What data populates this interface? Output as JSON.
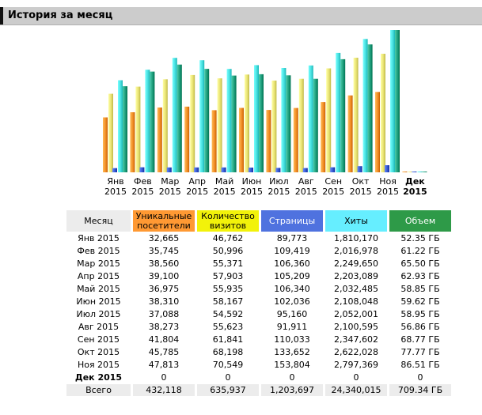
{
  "section": {
    "title": "История за месяц"
  },
  "chart_data": {
    "type": "bar",
    "categories": [
      [
        "Янв",
        "2015"
      ],
      [
        "Фев",
        "2015"
      ],
      [
        "Мар",
        "2015"
      ],
      [
        "Апр",
        "2015"
      ],
      [
        "Май",
        "2015"
      ],
      [
        "Июн",
        "2015"
      ],
      [
        "Июл",
        "2015"
      ],
      [
        "Авг",
        "2015"
      ],
      [
        "Сен",
        "2015"
      ],
      [
        "Окт",
        "2015"
      ],
      [
        "Ноя",
        "2015"
      ],
      [
        "Дек",
        "2015"
      ]
    ],
    "highlight_category_index": 11,
    "series": [
      {
        "name": "Уникальные посетители",
        "color": "#f08a24",
        "values": [
          32665,
          35745,
          38560,
          39100,
          36975,
          38310,
          37088,
          38273,
          41804,
          45785,
          47813,
          0
        ]
      },
      {
        "name": "Количество визитов",
        "color": "#e6e070",
        "values": [
          46762,
          50996,
          55371,
          57903,
          55935,
          58167,
          54592,
          55623,
          61841,
          68198,
          70549,
          0
        ]
      },
      {
        "name": "Страницы",
        "color": "#3355cc",
        "values": [
          89773,
          109419,
          106360,
          105209,
          106340,
          102036,
          95160,
          91911,
          110033,
          133652,
          153804,
          0
        ]
      },
      {
        "name": "Хиты",
        "color": "#44dddd",
        "values": [
          1810170,
          2016978,
          2249650,
          2203089,
          2032485,
          2108048,
          2052001,
          2100595,
          2347602,
          2622028,
          2797369,
          0
        ]
      },
      {
        "name": "Объем",
        "color": "#1a9a78",
        "values": [
          52.35,
          61.22,
          65.5,
          62.93,
          58.85,
          59.62,
          58.95,
          56.86,
          68.77,
          77.77,
          86.51,
          0
        ]
      }
    ]
  },
  "table": {
    "headers": {
      "month": "Месяц",
      "uniq": "Уникальные посетители",
      "visits": "Количество визитов",
      "pages": "Страницы",
      "hits": "Хиты",
      "bandwidth": "Объем"
    },
    "rows": [
      {
        "month": "Янв 2015",
        "uniq": "32,665",
        "visits": "46,762",
        "pages": "89,773",
        "hits": "1,810,170",
        "bandwidth": "52.35 ГБ"
      },
      {
        "month": "Фев 2015",
        "uniq": "35,745",
        "visits": "50,996",
        "pages": "109,419",
        "hits": "2,016,978",
        "bandwidth": "61.22 ГБ"
      },
      {
        "month": "Мар 2015",
        "uniq": "38,560",
        "visits": "55,371",
        "pages": "106,360",
        "hits": "2,249,650",
        "bandwidth": "65.50 ГБ"
      },
      {
        "month": "Апр 2015",
        "uniq": "39,100",
        "visits": "57,903",
        "pages": "105,209",
        "hits": "2,203,089",
        "bandwidth": "62.93 ГБ"
      },
      {
        "month": "Май 2015",
        "uniq": "36,975",
        "visits": "55,935",
        "pages": "106,340",
        "hits": "2,032,485",
        "bandwidth": "58.85 ГБ"
      },
      {
        "month": "Июн 2015",
        "uniq": "38,310",
        "visits": "58,167",
        "pages": "102,036",
        "hits": "2,108,048",
        "bandwidth": "59.62 ГБ"
      },
      {
        "month": "Июл 2015",
        "uniq": "37,088",
        "visits": "54,592",
        "pages": "95,160",
        "hits": "2,052,001",
        "bandwidth": "58.95 ГБ"
      },
      {
        "month": "Авг 2015",
        "uniq": "38,273",
        "visits": "55,623",
        "pages": "91,911",
        "hits": "2,100,595",
        "bandwidth": "56.86 ГБ"
      },
      {
        "month": "Сен 2015",
        "uniq": "41,804",
        "visits": "61,841",
        "pages": "110,033",
        "hits": "2,347,602",
        "bandwidth": "68.77 ГБ"
      },
      {
        "month": "Окт 2015",
        "uniq": "45,785",
        "visits": "68,198",
        "pages": "133,652",
        "hits": "2,622,028",
        "bandwidth": "77.77 ГБ"
      },
      {
        "month": "Ноя 2015",
        "uniq": "47,813",
        "visits": "70,549",
        "pages": "153,804",
        "hits": "2,797,369",
        "bandwidth": "86.51 ГБ"
      },
      {
        "month": "Дек 2015",
        "uniq": "0",
        "visits": "0",
        "pages": "0",
        "hits": "0",
        "bandwidth": "0",
        "current": true
      }
    ],
    "total": {
      "month": "Всего",
      "uniq": "432,118",
      "visits": "635,937",
      "pages": "1,203,697",
      "hits": "24,340,015",
      "bandwidth": "709.34 ГБ"
    }
  }
}
